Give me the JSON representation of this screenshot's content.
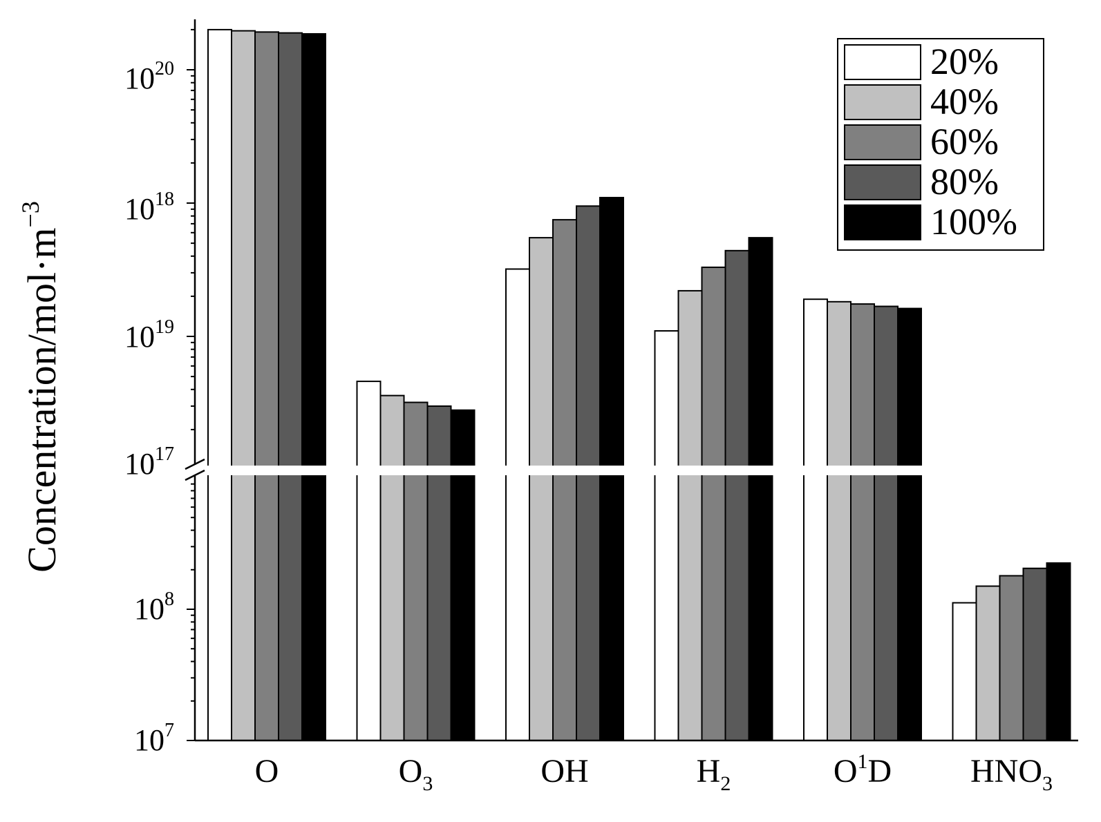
{
  "chart_data": {
    "type": "bar",
    "ylabel": "Concentration/mol·m",
    "ylabel_exponent": "−3",
    "yscale": "log (broken axis)",
    "ylim_lower_segment": [
      10000000.0,
      1000000000.0
    ],
    "ylim_upper_segment": [
      1e+17,
      2.8e+20
    ],
    "yticks": [
      {
        "base": "10",
        "exp": "7"
      },
      {
        "base": "10",
        "exp": "8"
      },
      {
        "base": "10",
        "exp": "17"
      },
      {
        "base": "10",
        "exp": "19"
      },
      {
        "base": "10",
        "exp": "18"
      },
      {
        "base": "10",
        "exp": "20"
      }
    ],
    "categories": [
      {
        "base": "O",
        "sub": "",
        "sup": ""
      },
      {
        "base": "O",
        "sub": "3",
        "sup": ""
      },
      {
        "base": "OH",
        "sub": "",
        "sup": ""
      },
      {
        "base": "H",
        "sub": "2",
        "sup": ""
      },
      {
        "base": "O",
        "sub": "",
        "sup": "1",
        "tail": "D"
      },
      {
        "base": "HNO",
        "sub": "3",
        "sup": ""
      }
    ],
    "series": [
      {
        "name": "20%",
        "color": "#ffffff",
        "values": [
          2e+20,
          4.6e+17,
          3.2e+18,
          1.1e+18,
          1.9e+18,
          112000000.0
        ]
      },
      {
        "name": "40%",
        "color": "#c0c0c0",
        "values": [
          1.96e+20,
          3.6e+17,
          5.5e+18,
          2.2e+18,
          1.82e+18,
          150000000.0
        ]
      },
      {
        "name": "60%",
        "color": "#808080",
        "values": [
          1.92e+20,
          3.2e+17,
          7.5e+18,
          3.3e+18,
          1.75e+18,
          180000000.0
        ]
      },
      {
        "name": "80%",
        "color": "#5a5a5a",
        "values": [
          1.89e+20,
          3e+17,
          9.5e+18,
          4.4e+18,
          1.68e+18,
          205000000.0
        ]
      },
      {
        "name": "100%",
        "color": "#000000",
        "values": [
          1.86e+20,
          2.8e+17,
          1.1e+19,
          5.5e+18,
          1.62e+18,
          225000000.0
        ]
      }
    ],
    "legend_position": "top-right",
    "grid": false
  }
}
